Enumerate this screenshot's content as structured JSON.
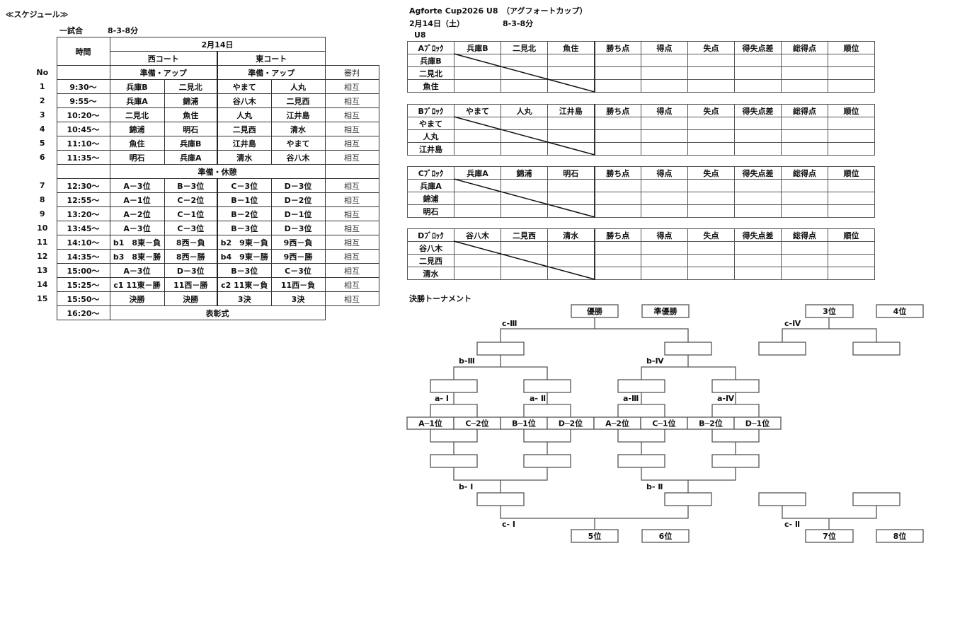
{
  "schedule": {
    "title": "≪スケジュール≫",
    "match_label": "一試合",
    "match_format": "8-3-8分",
    "time_header": "時間",
    "date": "2月14日",
    "west_court": "西コート",
    "east_court": "東コート",
    "no_header": "No",
    "warmup": "準備・アップ",
    "referee_header": "審判",
    "break_label": "準備・休憩",
    "rows_am": [
      {
        "no": "1",
        "time": "9:30～",
        "w1": "兵庫B",
        "w2": "二見北",
        "e1": "やまて",
        "e2": "人丸",
        "ref": "相互"
      },
      {
        "no": "2",
        "time": "9:55～",
        "w1": "兵庫A",
        "w2": "錦浦",
        "e1": "谷八木",
        "e2": "二見西",
        "ref": "相互"
      },
      {
        "no": "3",
        "time": "10:20～",
        "w1": "二見北",
        "w2": "魚住",
        "e1": "人丸",
        "e2": "江井島",
        "ref": "相互"
      },
      {
        "no": "4",
        "time": "10:45～",
        "w1": "錦浦",
        "w2": "明石",
        "e1": "二見西",
        "e2": "清水",
        "ref": "相互"
      },
      {
        "no": "5",
        "time": "11:10～",
        "w1": "魚住",
        "w2": "兵庫B",
        "e1": "江井島",
        "e2": "やまて",
        "ref": "相互"
      },
      {
        "no": "6",
        "time": "11:35～",
        "w1": "明石",
        "w2": "兵庫A",
        "e1": "清水",
        "e2": "谷八木",
        "ref": "相互"
      }
    ],
    "rows_pm": [
      {
        "no": "7",
        "time": "12:30～",
        "w1": "A－3位",
        "w2": "B－3位",
        "e1": "C－3位",
        "e2": "D－3位",
        "ref": "相互"
      },
      {
        "no": "8",
        "time": "12:55～",
        "w1": "A－1位",
        "w2": "C－2位",
        "e1": "B－1位",
        "e2": "D－2位",
        "ref": "相互"
      },
      {
        "no": "9",
        "time": "13:20～",
        "w1": "A－2位",
        "w2": "C－1位",
        "e1": "B－2位",
        "e2": "D－1位",
        "ref": "相互"
      },
      {
        "no": "10",
        "time": "13:45～",
        "w1": "A－3位",
        "w2": "C－3位",
        "e1": "B－3位",
        "e2": "D－3位",
        "ref": "相互"
      },
      {
        "no": "11",
        "time": "14:10～",
        "w1": "b1　8東－負",
        "w2": "8西－負",
        "e1": "b2　9東－負",
        "e2": "9西－負",
        "ref": "相互"
      },
      {
        "no": "12",
        "time": "14:35～",
        "w1": "b3　8東－勝",
        "w2": "8西－勝",
        "e1": "b4　9東－勝",
        "e2": "9西－勝",
        "ref": "相互"
      },
      {
        "no": "13",
        "time": "15:00～",
        "w1": "A－3位",
        "w2": "D－3位",
        "e1": "B－3位",
        "e2": "C－3位",
        "ref": "相互"
      },
      {
        "no": "14",
        "time": "15:25～",
        "w1": "c1 11東－勝",
        "w2": "11西－勝",
        "e1": "c2 11東－負",
        "e2": "11西－負",
        "ref": "相互"
      },
      {
        "no": "15",
        "time": "15:50～",
        "w1": "決勝",
        "w2": "決勝",
        "e1": "3決",
        "e2": "3決",
        "ref": "相互"
      }
    ],
    "ceremony_time": "16:20～",
    "ceremony": "表彰式"
  },
  "event": {
    "title": "Agforte Cup2026 U8　（アグフォートカップ）",
    "date": "2月14日（土）",
    "format": "8-3-8分",
    "category": "U8"
  },
  "stat_headers": [
    "勝ち点",
    "得点",
    "失点",
    "得失点差",
    "総得点",
    "順位"
  ],
  "blocks": [
    {
      "label": "Aﾌﾞﾛｯｸ",
      "teams": [
        "兵庫B",
        "二見北",
        "魚住"
      ]
    },
    {
      "label": "Bﾌﾞﾛｯｸ",
      "teams": [
        "やまて",
        "人丸",
        "江井島"
      ]
    },
    {
      "label": "Cﾌﾞﾛｯｸ",
      "teams": [
        "兵庫A",
        "錦浦",
        "明石"
      ]
    },
    {
      "label": "Dﾌﾞﾛｯｸ",
      "teams": [
        "谷八木",
        "二見西",
        "清水"
      ]
    }
  ],
  "tournament": {
    "title": "決勝トーナメント",
    "seeds": [
      "A─1位",
      "C─2位",
      "B─1位",
      "D─2位",
      "A─2位",
      "C─1位",
      "B─2位",
      "D─1位"
    ],
    "round_labels": {
      "a1": "a- Ⅰ",
      "a2": "a- Ⅱ",
      "a3": "a-Ⅲ",
      "a4": "a-Ⅳ",
      "b1": "b- Ⅰ",
      "b2": "b- Ⅱ",
      "b3": "b-Ⅲ",
      "b4": "b-Ⅳ",
      "c1": "c- Ⅰ",
      "c2": "c- Ⅱ",
      "c3": "c-Ⅲ",
      "c4": "c-Ⅳ"
    },
    "places": {
      "first": "優勝",
      "second": "準優勝",
      "third": "3位",
      "fourth": "4位",
      "fifth": "5位",
      "sixth": "6位",
      "seventh": "7位",
      "eighth": "8位"
    }
  }
}
